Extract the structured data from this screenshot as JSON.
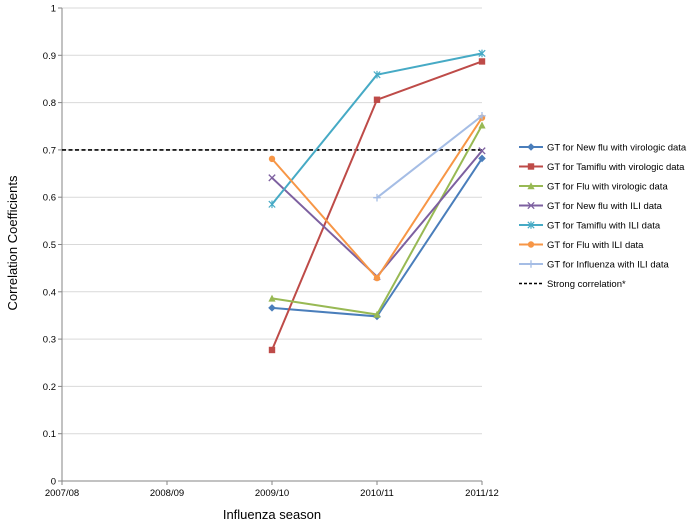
{
  "chart_data": {
    "type": "line",
    "xlabel": "Influenza season",
    "ylabel": "Correlation Coefficients",
    "categories": [
      "2007/08",
      "2008/09",
      "2009/10",
      "2010/11",
      "2011/12"
    ],
    "ylim": [
      0,
      1
    ],
    "yticks": [
      0,
      0.1,
      0.2,
      0.3,
      0.4,
      0.5,
      0.6,
      0.7,
      0.8,
      0.9,
      1
    ],
    "ytick_labels": [
      "0",
      "0.1",
      "0.2",
      "0.3",
      "0.4",
      "0.5",
      "0.6",
      "0.7",
      "0.8",
      "0.9",
      "1"
    ],
    "grid": "horizontal",
    "legend_position": "right",
    "series": [
      {
        "name": "GT for New flu with virologic data",
        "color": "#4a7ebb",
        "marker": "diamond",
        "values": [
          null,
          null,
          0.366,
          0.348,
          0.682
        ]
      },
      {
        "name": "GT for Tamiflu with virologic data",
        "color": "#be4b48",
        "marker": "square",
        "values": [
          null,
          null,
          0.277,
          0.806,
          0.887
        ]
      },
      {
        "name": "GT for Flu with virologic data",
        "color": "#98b954",
        "marker": "triangle",
        "values": [
          null,
          null,
          0.386,
          0.352,
          0.752
        ]
      },
      {
        "name": "GT for New flu with ILI data",
        "color": "#7d60a0",
        "marker": "x",
        "values": [
          null,
          null,
          0.641,
          0.432,
          0.698
        ]
      },
      {
        "name": "GT for Tamiflu with ILI data",
        "color": "#46aac5",
        "marker": "star",
        "values": [
          null,
          null,
          0.585,
          0.859,
          0.904
        ]
      },
      {
        "name": "GT for Flu with ILI data",
        "color": "#f79646",
        "marker": "circle",
        "values": [
          null,
          null,
          0.681,
          0.429,
          0.768
        ]
      },
      {
        "name": "GT for Influenza with ILI data",
        "color": "#a5bde5",
        "marker": "plus",
        "values": [
          null,
          null,
          null,
          0.599,
          0.772
        ]
      },
      {
        "name": "Strong correlation*",
        "color": "#000000",
        "marker": "none",
        "dashed": true,
        "values": [
          0.7,
          0.7,
          0.7,
          0.7,
          0.7
        ]
      }
    ]
  }
}
